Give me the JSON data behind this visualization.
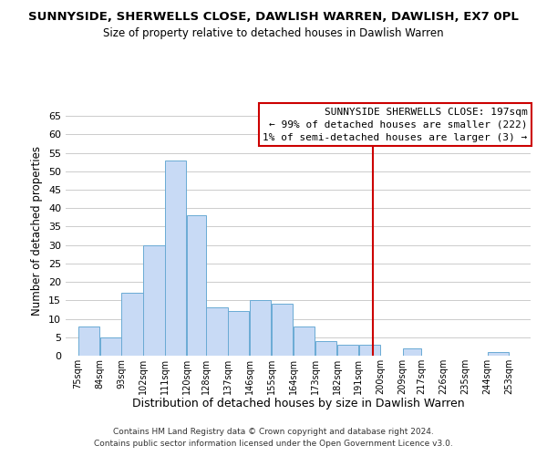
{
  "title": "SUNNYSIDE, SHERWELLS CLOSE, DAWLISH WARREN, DAWLISH, EX7 0PL",
  "subtitle": "Size of property relative to detached houses in Dawlish Warren",
  "xlabel": "Distribution of detached houses by size in Dawlish Warren",
  "ylabel": "Number of detached properties",
  "bar_left_edges": [
    75,
    84,
    93,
    102,
    111,
    120,
    128,
    137,
    146,
    155,
    164,
    173,
    182,
    191,
    200,
    209,
    217,
    226,
    235,
    244
  ],
  "bar_widths": [
    9,
    9,
    9,
    9,
    9,
    8,
    9,
    9,
    9,
    9,
    9,
    9,
    9,
    9,
    9,
    8,
    9,
    9,
    9,
    9
  ],
  "bar_heights": [
    8,
    5,
    17,
    30,
    53,
    38,
    13,
    12,
    15,
    14,
    8,
    4,
    3,
    3,
    0,
    2,
    0,
    0,
    0,
    1
  ],
  "bar_color": "#c8daf5",
  "bar_edgecolor": "#6aaad4",
  "grid_color": "#cccccc",
  "ylim": [
    0,
    68
  ],
  "yticks": [
    0,
    5,
    10,
    15,
    20,
    25,
    30,
    35,
    40,
    45,
    50,
    55,
    60,
    65
  ],
  "xtick_labels": [
    "75sqm",
    "84sqm",
    "93sqm",
    "102sqm",
    "111sqm",
    "120sqm",
    "128sqm",
    "137sqm",
    "146sqm",
    "155sqm",
    "164sqm",
    "173sqm",
    "182sqm",
    "191sqm",
    "200sqm",
    "209sqm",
    "217sqm",
    "226sqm",
    "235sqm",
    "244sqm",
    "253sqm"
  ],
  "vline_x": 197,
  "vline_color": "#cc0000",
  "annotation_title": "SUNNYSIDE SHERWELLS CLOSE: 197sqm",
  "annotation_line1": "← 99% of detached houses are smaller (222)",
  "annotation_line2": "1% of semi-detached houses are larger (3) →",
  "annotation_box_color": "#ffffff",
  "annotation_box_edgecolor": "#cc0000",
  "footer1": "Contains HM Land Registry data © Crown copyright and database right 2024.",
  "footer2": "Contains public sector information licensed under the Open Government Licence v3.0.",
  "bg_color": "#ffffff",
  "title_fontsize": 9.5,
  "subtitle_fontsize": 8.5,
  "xlabel_fontsize": 9,
  "ylabel_fontsize": 8.5,
  "xtick_fontsize": 7,
  "ytick_fontsize": 8,
  "footer_fontsize": 6.5,
  "annot_fontsize": 8
}
